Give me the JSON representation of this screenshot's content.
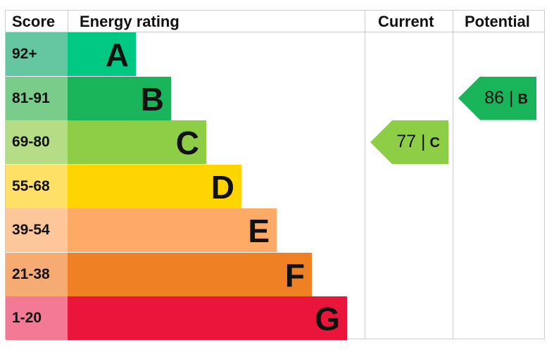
{
  "chart_data": {
    "type": "bar",
    "headers": {
      "score": "Score",
      "rating": "Energy rating",
      "current": "Current",
      "potential": "Potential"
    },
    "bands": [
      {
        "score": "92+",
        "letter": "A",
        "color": "#00c781",
        "light": "#64c7a1"
      },
      {
        "score": "81-91",
        "letter": "B",
        "color": "#19b459",
        "light": "#79cc8a"
      },
      {
        "score": "69-80",
        "letter": "C",
        "color": "#8dce46",
        "light": "#b5dd85"
      },
      {
        "score": "55-68",
        "letter": "D",
        "color": "#ffd500",
        "light": "#ffe066"
      },
      {
        "score": "39-54",
        "letter": "E",
        "color": "#fcaa65",
        "light": "#fdc79a"
      },
      {
        "score": "21-38",
        "letter": "F",
        "color": "#ef8023",
        "light": "#f5ab72"
      },
      {
        "score": "1-20",
        "letter": "G",
        "color": "#e9153b",
        "light": "#f27a94"
      }
    ],
    "current": {
      "value": 77,
      "letter": "C",
      "color": "#8dce46"
    },
    "potential": {
      "value": 86,
      "letter": "B",
      "color": "#19b459"
    }
  }
}
